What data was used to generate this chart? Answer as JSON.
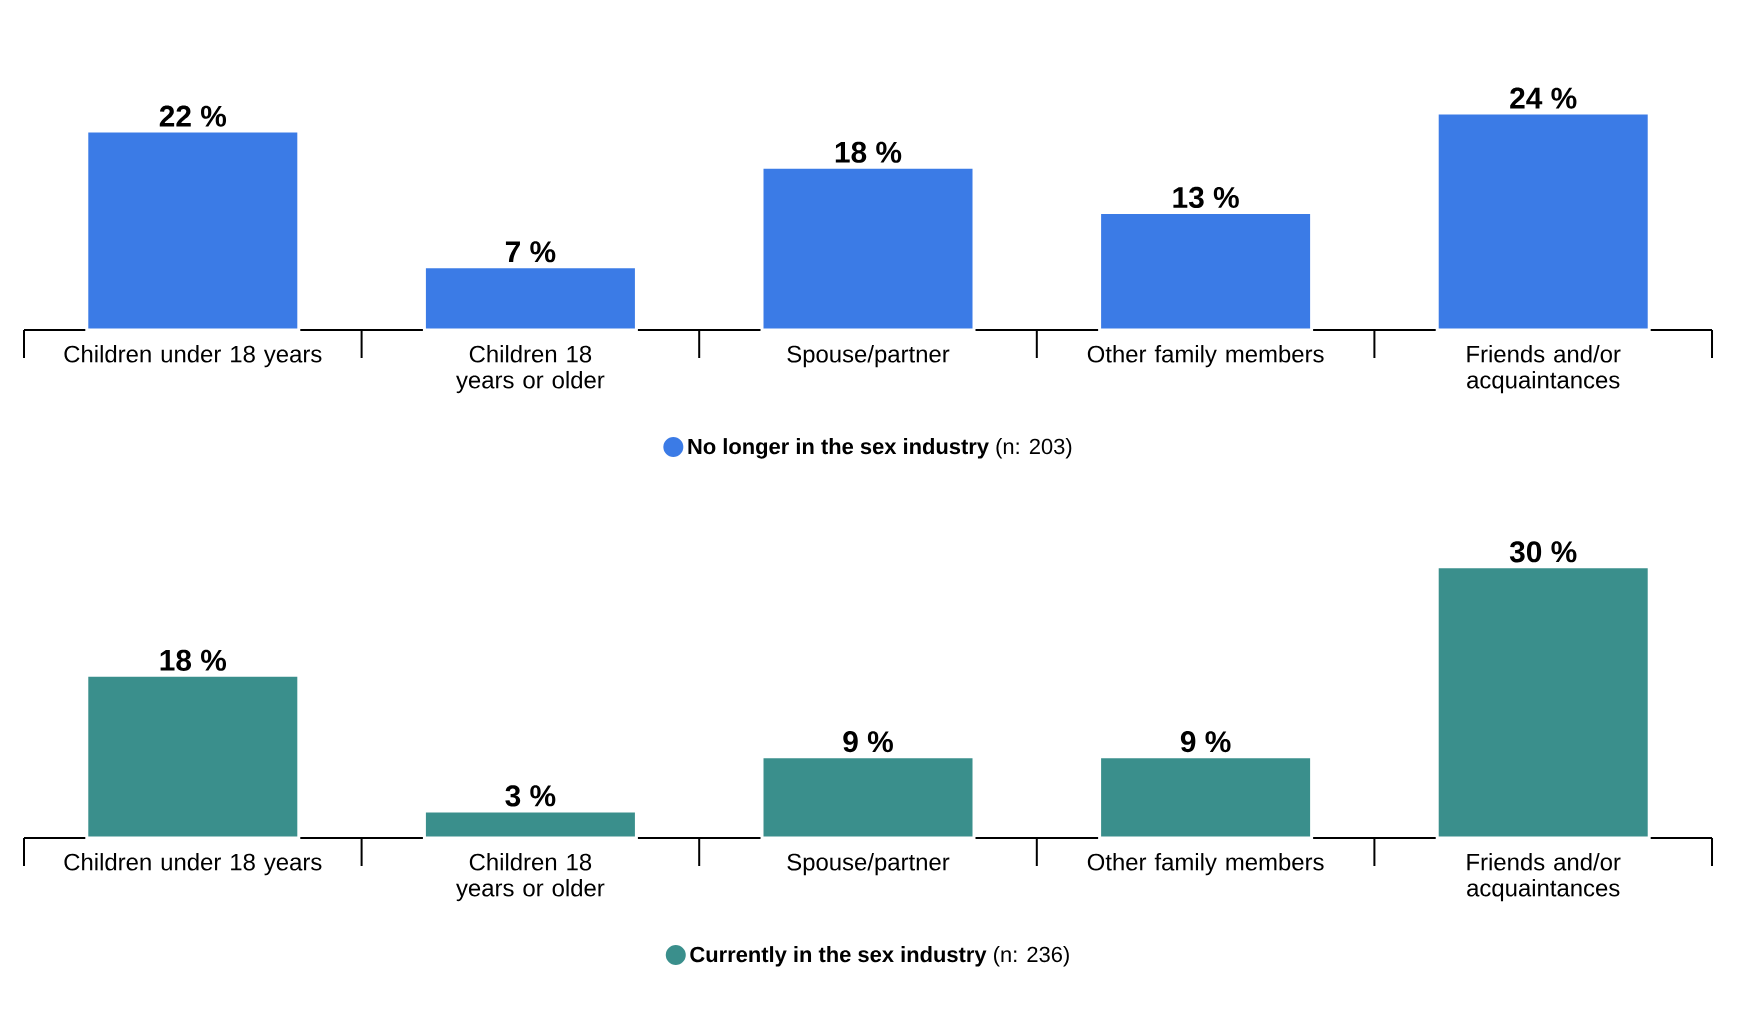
{
  "chart_data": [
    {
      "type": "bar",
      "categories": [
        "Children under 18 years",
        "Children 18 years or older",
        "Spouse/partner",
        "Other family members",
        "Friends and/or acquaintances"
      ],
      "series": [
        {
          "name": "**No longer in the sex industry** (n: 203)",
          "color": "#3b7be6",
          "values": [
            22,
            7,
            18,
            13,
            24
          ],
          "value_labels": [
            "22 %",
            "7 %",
            "18 %",
            "13 %",
            "24 %"
          ]
        }
      ],
      "legend": "bottom"
    },
    {
      "type": "bar",
      "categories": [
        "Children under 18 years",
        "Children 18 years or older",
        "Spouse/partner",
        "Other family members",
        "Friends and/or acquaintances"
      ],
      "series": [
        {
          "name": "**Currently in the sex industry** (n: 236)",
          "color": "#3a8f8c",
          "values": [
            18,
            3,
            9,
            9,
            30
          ],
          "value_labels": [
            "18 %",
            "3 %",
            "9 %",
            "9 %",
            "30 %"
          ]
        }
      ],
      "legend": "bottom"
    }
  ]
}
